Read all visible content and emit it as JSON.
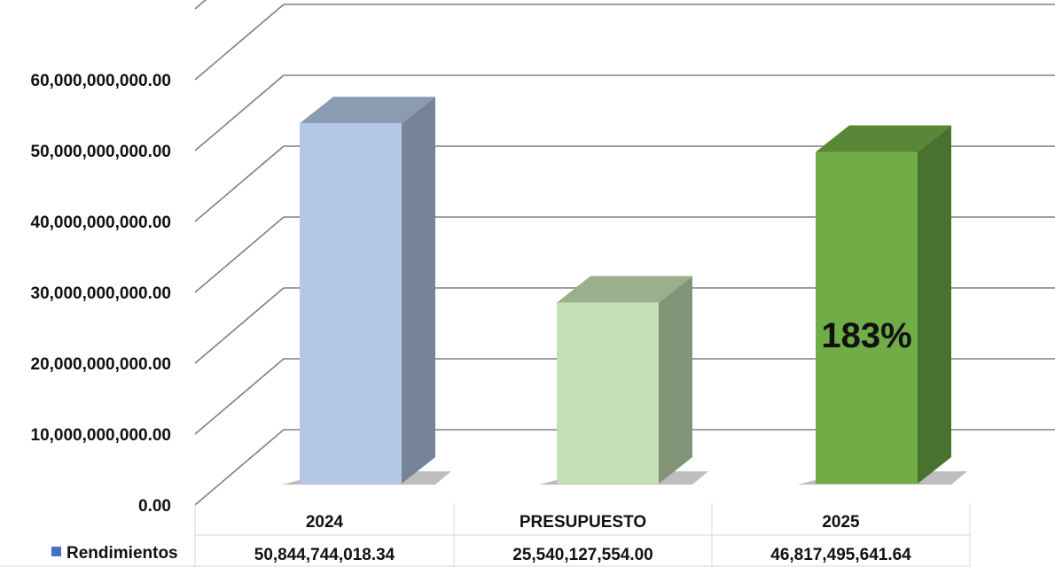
{
  "chart_data": {
    "type": "bar",
    "title": "",
    "xlabel": "",
    "ylabel": "",
    "ylim": [
      0,
      70000000000
    ],
    "yticks": [
      "0.00",
      "10,000,000,000.00",
      "20,000,000,000.00",
      "30,000,000,000.00",
      "40,000,000,000.00",
      "50,000,000,000.00",
      "60,000,000,000.00"
    ],
    "categories": [
      "2024",
      "PRESUPUESTO",
      "2025"
    ],
    "series": [
      {
        "name": "Rendimientos",
        "values": [
          50844744018.34,
          25540127554.0,
          46817495641.64
        ],
        "value_labels": [
          "50,844,744,018.34",
          "25,540,127,554.00",
          "46,817,495,641.64"
        ]
      }
    ],
    "bar_colors": [
      "#b4c7e7",
      "#c5e0b4",
      "#70ad47"
    ],
    "legend_color": "#4472c4",
    "legend_position": "data-table-left",
    "grid": true,
    "annotations": [
      {
        "category": "2025",
        "text": "183%"
      }
    ]
  }
}
